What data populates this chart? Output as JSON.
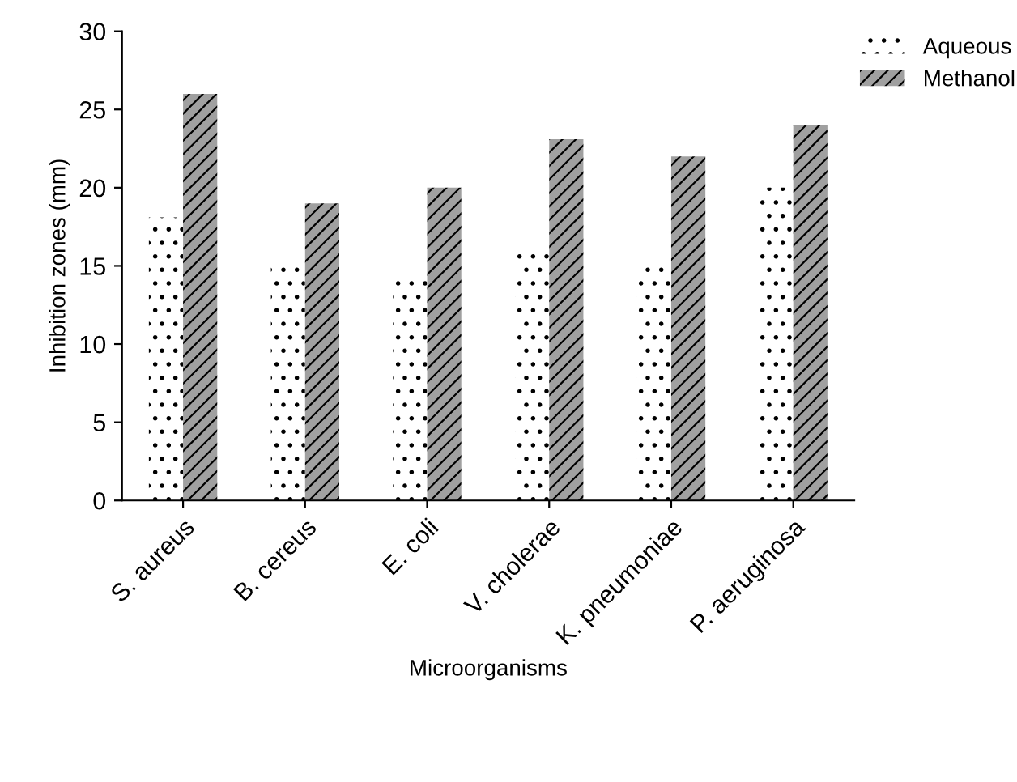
{
  "chart_data": {
    "type": "bar",
    "xlabel": "Microorganisms",
    "ylabel": "Inhibition zones (mm)",
    "categories": [
      "S. aureus",
      "B. cereus",
      "E. coli",
      "V. cholerae",
      "K. pneumoniae",
      "P. aeruginosa"
    ],
    "series": [
      {
        "name": "Aqueous",
        "color": "#ffffff",
        "values": [
          18.1,
          15,
          14.2,
          16,
          15,
          20
        ]
      },
      {
        "name": "Methanol",
        "color": "#a0a0a0",
        "values": [
          26,
          19,
          20,
          23.1,
          22,
          24
        ]
      }
    ],
    "ylim": [
      0,
      30
    ],
    "yticks": [
      0,
      5,
      10,
      15,
      20,
      25,
      30
    ],
    "grid": false,
    "legend": "top right"
  }
}
